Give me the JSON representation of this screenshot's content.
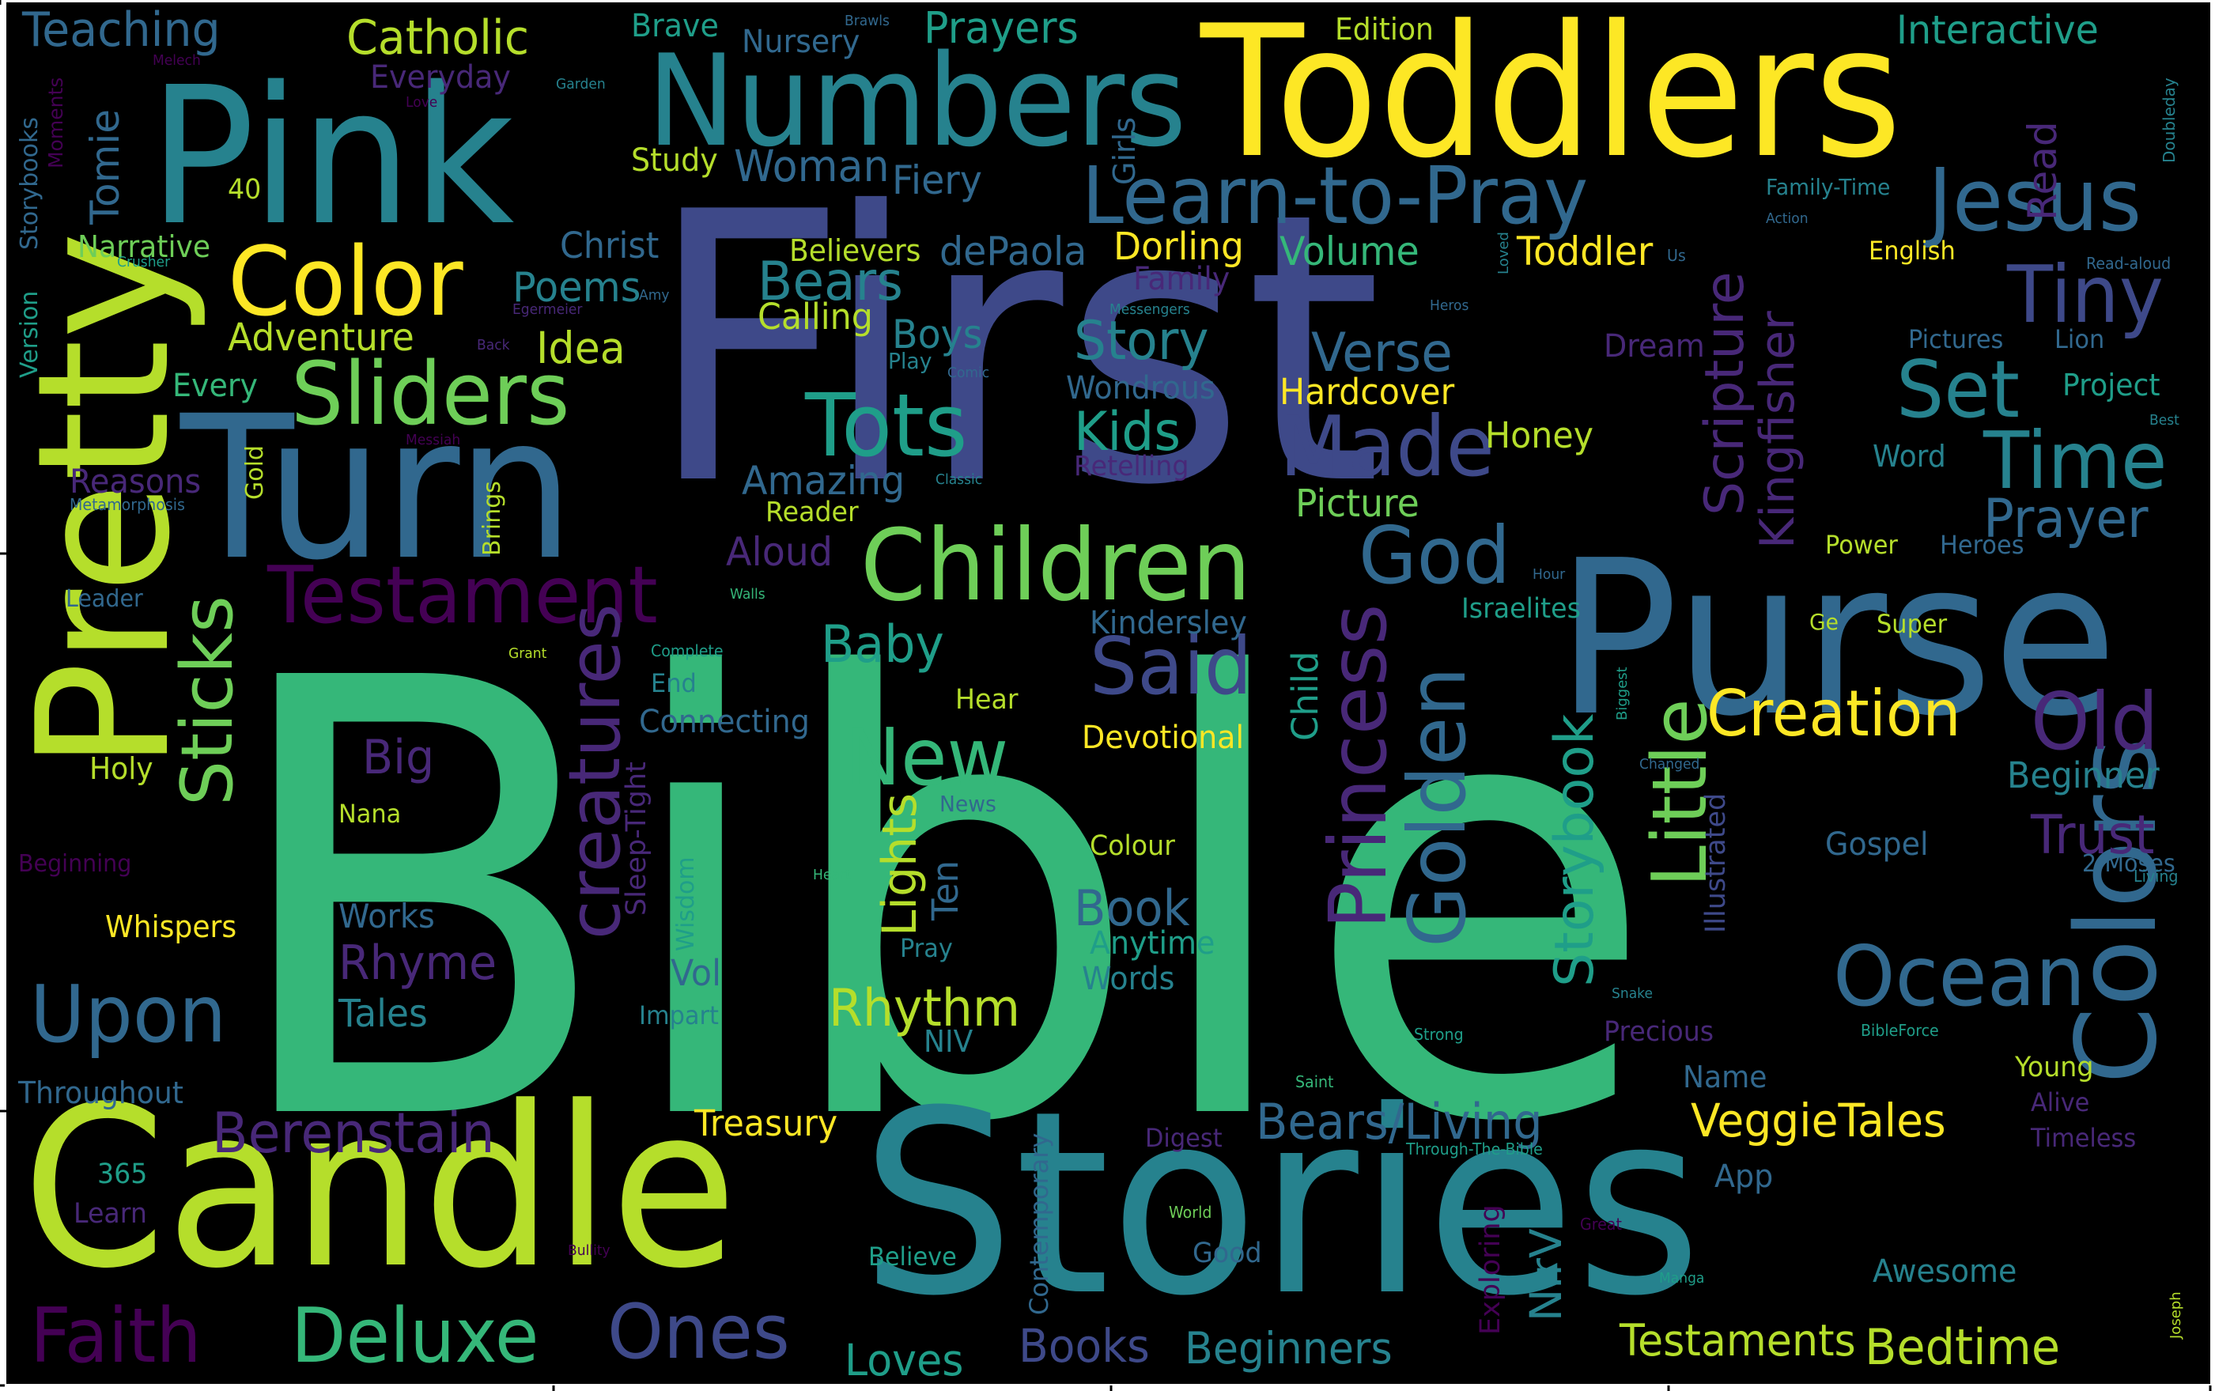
{
  "background": "#000000",
  "palette": {
    "v1": "#440154",
    "v2": "#482878",
    "v3": "#3e4989",
    "v4": "#31688e",
    "v5": "#26828e",
    "v6": "#1f9e89",
    "v7": "#35b779",
    "v8": "#6ece58",
    "v9": "#b5de2b",
    "v10": "#fde725"
  },
  "words": [
    "Bible",
    "First",
    "Stories",
    "Candle",
    "Toddlers",
    "Purse",
    "Pink",
    "Turn",
    "Pretty",
    "Numbers",
    "Children",
    "Learn-to-Pray",
    "Jesus",
    "Color",
    "Colors",
    "Testament",
    "Sliders",
    "Tots",
    "Sticks",
    "creatures",
    "Made",
    "God",
    "Said",
    "New",
    "Golden",
    "Princess",
    "Little",
    "Ocean",
    "Old",
    "Creation",
    "Tiny",
    "Time",
    "Set",
    "Upon",
    "Faith",
    "Deluxe",
    "Ones",
    "Berenstain",
    "Storybook",
    "Scripture",
    "Kingfisher",
    "Bears",
    "Kids",
    "Story",
    "Verse",
    "Prayer",
    "Trust",
    "Rhythm",
    "Baby",
    "Book",
    "Bedtime",
    "Testaments",
    "Beginners",
    "Books",
    "Loves",
    "VeggieTales",
    "Bears/Living",
    "Lights",
    "Rhyme",
    "Catholic",
    "Teaching",
    "Prayers",
    "Interactive",
    "Edition",
    "Brave",
    "Nursery",
    "Adventure",
    "Idea",
    "Poems",
    "Boys",
    "Calling",
    "Christ",
    "Believers",
    "dePaola",
    "Dorling",
    "Volume",
    "Toddler",
    "Hardcover",
    "Honey",
    "Picture",
    "Woman",
    "Fiery",
    "Study",
    "Everyday",
    "Tomie",
    "Narrative",
    "Every",
    "Reasons",
    "Aloud",
    "Kindersley",
    "Israelites",
    "Amazing",
    "Reader",
    "Wondrous",
    "Retelling",
    "Read",
    "Girls",
    "Family",
    "Dream",
    "Child",
    "Big",
    "Connecting",
    "Devotional",
    "Beginner",
    "Gospel",
    "Sleep-Tight",
    "Ten",
    "Vol",
    "Anytime",
    "Words",
    "Colour",
    "Illustrated",
    "NIrV",
    "Treasury",
    "Holy",
    "Nana",
    "Whispers",
    "Works",
    "Tales",
    "Throughout",
    "365",
    "Learn",
    "Digest",
    "Contemporary",
    "Exploring",
    "Awesome",
    "Good",
    "Believe",
    "App",
    "Timeless",
    "Alive",
    "Young",
    "Name",
    "Precious",
    "Impart",
    "NIV",
    "Pray",
    "Hear",
    "End",
    "Wisdom",
    "News",
    "Power",
    "Heroes",
    "Super",
    "Project",
    "Word",
    "Pictures",
    "Lion",
    "English",
    "Family-Time",
    "Leader",
    "Brings",
    "Gold",
    "40",
    "Version",
    "Storybooks",
    "Beginning",
    "2-Moses",
    "Moments",
    "Metamorphosis",
    "Messiah",
    "Comic",
    "Play",
    "Classic",
    "Grant",
    "Complete",
    "Walls",
    "Hour",
    "Ge",
    "Biggest",
    "Changed",
    "Heart",
    "Snake",
    "Strong",
    "Saint",
    "Through-The-Bible",
    "World",
    "Great",
    "Manga",
    "Joseph",
    "BibleForce",
    "Living",
    "Best",
    "Read-aloud",
    "Doubleday",
    "Action",
    "Us",
    "Loved",
    "Heros",
    "Messengers",
    "Amy",
    "Egermeier",
    "Back",
    "Crusher",
    "Garden",
    "Brawls",
    "Melech",
    "Love",
    "Bullity"
  ]
}
